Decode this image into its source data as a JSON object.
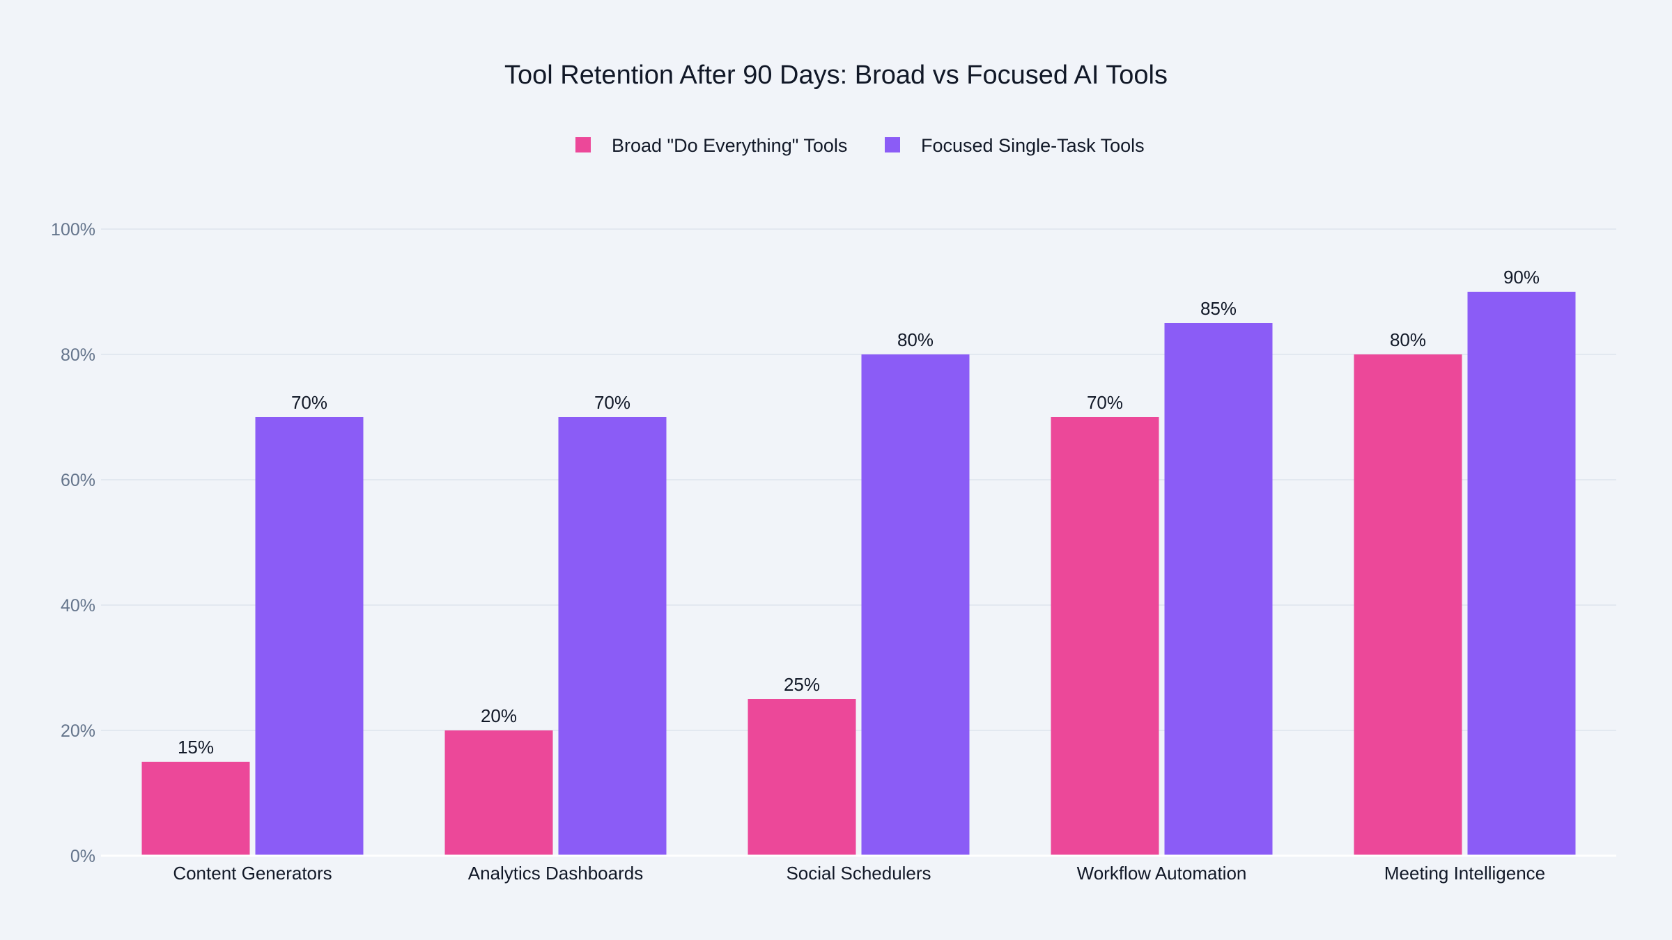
{
  "chart_data": {
    "type": "bar",
    "title": "Tool Retention After 90 Days: Broad vs Focused AI Tools",
    "xlabel": "",
    "ylabel": "",
    "categories": [
      "Content Generators",
      "Analytics Dashboards",
      "Social Schedulers",
      "Workflow Automation",
      "Meeting Intelligence"
    ],
    "series": [
      {
        "name": "Broad \"Do Everything\" Tools",
        "values": [
          15,
          20,
          25,
          70,
          80
        ],
        "color": "#ec4899",
        "labels": [
          "15%",
          "20%",
          "25%",
          "70%",
          "80%"
        ]
      },
      {
        "name": "Focused Single-Task Tools",
        "values": [
          70,
          70,
          80,
          85,
          90
        ],
        "color": "#8b5cf6",
        "labels": [
          "70%",
          "70%",
          "80%",
          "85%",
          "90%"
        ]
      }
    ],
    "ylim": [
      0,
      100
    ],
    "yticks": [
      0,
      20,
      40,
      60,
      80,
      100
    ],
    "ytick_labels": [
      "0%",
      "20%",
      "40%",
      "60%",
      "80%",
      "100%"
    ],
    "grid": true,
    "legend_position": "top-center",
    "background": "#f1f4f9",
    "grid_color": "#e2e8f0"
  }
}
